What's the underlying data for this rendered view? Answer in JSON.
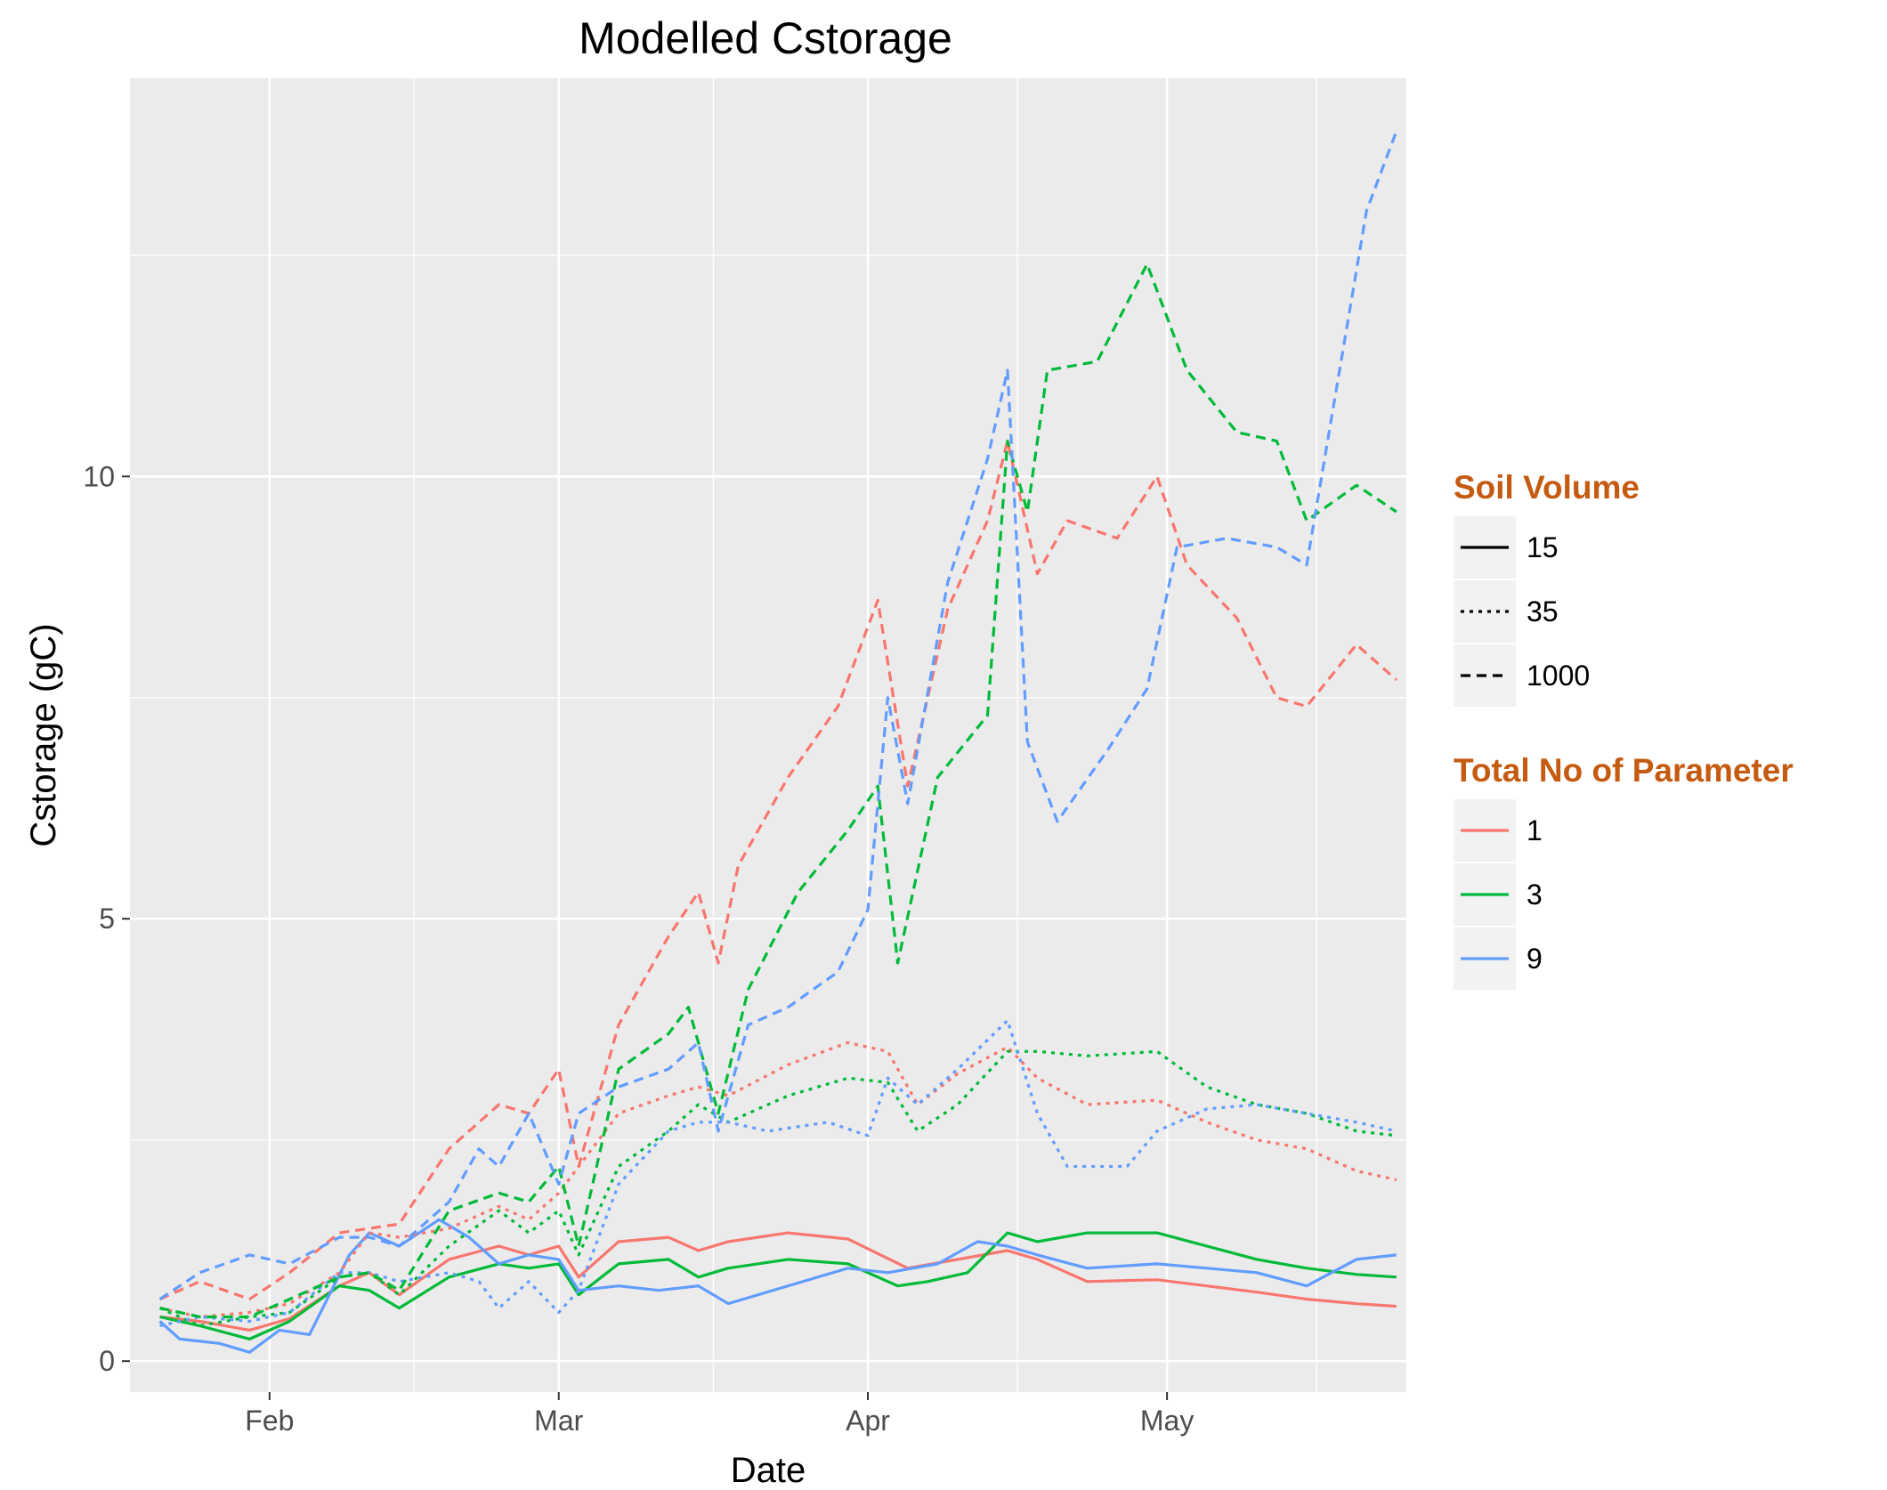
{
  "chart_data": {
    "type": "line",
    "title": "Modelled Cstorage",
    "xlabel": "Date",
    "ylabel": "Cstorage (gC)",
    "x_ticks": [
      {
        "date": "2000-02-01",
        "label": "Feb"
      },
      {
        "date": "2000-03-01",
        "label": "Mar"
      },
      {
        "date": "2000-04-01",
        "label": "Apr"
      },
      {
        "date": "2000-05-01",
        "label": "May"
      }
    ],
    "y_ticks": [
      0,
      5,
      10
    ],
    "xlim": [
      "2000-01-18",
      "2000-05-25"
    ],
    "ylim": [
      -0.35,
      14.5
    ],
    "grid": true,
    "legend_position": "right",
    "legends": [
      {
        "title": "Soil Volume",
        "kind": "linetype",
        "items": [
          {
            "label": "15",
            "linetype": "solid"
          },
          {
            "label": "35",
            "linetype": "dotted"
          },
          {
            "label": "1000",
            "linetype": "dashed"
          }
        ]
      },
      {
        "title": "Total No of Parameter",
        "kind": "color",
        "items": [
          {
            "label": "1",
            "color": "#F8766D"
          },
          {
            "label": "3",
            "color": "#00BA38"
          },
          {
            "label": "9",
            "color": "#619CFF"
          }
        ]
      }
    ],
    "series": [
      {
        "parameter": "1",
        "soil_volume": "15",
        "x": [
          "2000-01-21",
          "2000-01-25",
          "2000-01-30",
          "2000-02-03",
          "2000-02-08",
          "2000-02-11",
          "2000-02-14",
          "2000-02-19",
          "2000-02-24",
          "2000-02-27",
          "2000-03-01",
          "2000-03-03",
          "2000-03-07",
          "2000-03-12",
          "2000-03-15",
          "2000-03-18",
          "2000-03-24",
          "2000-03-30",
          "2000-04-05",
          "2000-04-10",
          "2000-04-15",
          "2000-04-18",
          "2000-04-23",
          "2000-04-30",
          "2000-05-05",
          "2000-05-10",
          "2000-05-15",
          "2000-05-20",
          "2000-05-24"
        ],
        "y": [
          0.5,
          0.45,
          0.35,
          0.48,
          0.85,
          1.0,
          0.75,
          1.15,
          1.3,
          1.2,
          1.3,
          0.95,
          1.35,
          1.4,
          1.25,
          1.35,
          1.45,
          1.38,
          1.05,
          1.15,
          1.25,
          1.15,
          0.9,
          0.92,
          0.85,
          0.78,
          0.7,
          0.65,
          0.62
        ]
      },
      {
        "parameter": "3",
        "soil_volume": "15",
        "x": [
          "2000-01-21",
          "2000-01-25",
          "2000-01-30",
          "2000-02-03",
          "2000-02-08",
          "2000-02-11",
          "2000-02-14",
          "2000-02-19",
          "2000-02-24",
          "2000-02-27",
          "2000-03-01",
          "2000-03-03",
          "2000-03-07",
          "2000-03-12",
          "2000-03-15",
          "2000-03-18",
          "2000-03-24",
          "2000-03-30",
          "2000-04-04",
          "2000-04-07",
          "2000-04-11",
          "2000-04-15",
          "2000-04-18",
          "2000-04-23",
          "2000-04-30",
          "2000-05-05",
          "2000-05-10",
          "2000-05-15",
          "2000-05-20",
          "2000-05-24"
        ],
        "y": [
          0.5,
          0.4,
          0.25,
          0.45,
          0.85,
          0.8,
          0.6,
          0.95,
          1.1,
          1.05,
          1.1,
          0.75,
          1.1,
          1.15,
          0.95,
          1.05,
          1.15,
          1.1,
          0.85,
          0.9,
          1.0,
          1.45,
          1.35,
          1.45,
          1.45,
          1.3,
          1.15,
          1.05,
          0.98,
          0.95
        ]
      },
      {
        "parameter": "9",
        "soil_volume": "15",
        "x": [
          "2000-01-21",
          "2000-01-23",
          "2000-01-27",
          "2000-01-30",
          "2000-02-02",
          "2000-02-05",
          "2000-02-09",
          "2000-02-11",
          "2000-02-14",
          "2000-02-18",
          "2000-02-21",
          "2000-02-24",
          "2000-02-27",
          "2000-03-01",
          "2000-03-03",
          "2000-03-07",
          "2000-03-11",
          "2000-03-15",
          "2000-03-18",
          "2000-03-24",
          "2000-03-30",
          "2000-04-03",
          "2000-04-08",
          "2000-04-12",
          "2000-04-15",
          "2000-04-18",
          "2000-04-23",
          "2000-04-30",
          "2000-05-05",
          "2000-05-10",
          "2000-05-15",
          "2000-05-20",
          "2000-05-24"
        ],
        "y": [
          0.45,
          0.25,
          0.2,
          0.1,
          0.35,
          0.3,
          1.2,
          1.45,
          1.3,
          1.6,
          1.4,
          1.1,
          1.2,
          1.15,
          0.8,
          0.85,
          0.8,
          0.85,
          0.65,
          0.85,
          1.05,
          1.0,
          1.1,
          1.35,
          1.3,
          1.2,
          1.05,
          1.1,
          1.05,
          1.0,
          0.85,
          1.15,
          1.2
        ]
      },
      {
        "parameter": "1",
        "soil_volume": "35",
        "x": [
          "2000-01-21",
          "2000-01-25",
          "2000-01-30",
          "2000-02-03",
          "2000-02-08",
          "2000-02-11",
          "2000-02-14",
          "2000-02-19",
          "2000-02-24",
          "2000-02-27",
          "2000-03-01",
          "2000-03-03",
          "2000-03-07",
          "2000-03-12",
          "2000-03-15",
          "2000-03-18",
          "2000-03-24",
          "2000-03-30",
          "2000-04-03",
          "2000-04-06",
          "2000-04-10",
          "2000-04-15",
          "2000-04-18",
          "2000-04-23",
          "2000-04-30",
          "2000-05-05",
          "2000-05-10",
          "2000-05-15",
          "2000-05-20",
          "2000-05-24"
        ],
        "y": [
          0.6,
          0.5,
          0.55,
          0.65,
          1.0,
          1.45,
          1.4,
          1.5,
          1.75,
          1.6,
          1.9,
          2.2,
          2.8,
          3.0,
          3.1,
          3.0,
          3.35,
          3.6,
          3.5,
          2.9,
          3.25,
          3.55,
          3.2,
          2.9,
          2.95,
          2.7,
          2.5,
          2.4,
          2.15,
          2.05
        ]
      },
      {
        "parameter": "3",
        "soil_volume": "35",
        "x": [
          "2000-01-21",
          "2000-01-25",
          "2000-01-30",
          "2000-02-03",
          "2000-02-08",
          "2000-02-11",
          "2000-02-14",
          "2000-02-19",
          "2000-02-24",
          "2000-02-27",
          "2000-03-01",
          "2000-03-03",
          "2000-03-07",
          "2000-03-12",
          "2000-03-15",
          "2000-03-18",
          "2000-03-24",
          "2000-03-30",
          "2000-04-03",
          "2000-04-06",
          "2000-04-10",
          "2000-04-15",
          "2000-04-18",
          "2000-04-23",
          "2000-04-30",
          "2000-05-05",
          "2000-05-10",
          "2000-05-15",
          "2000-05-20",
          "2000-05-24"
        ],
        "y": [
          0.6,
          0.4,
          0.5,
          0.55,
          0.95,
          1.0,
          0.75,
          1.3,
          1.7,
          1.45,
          1.7,
          1.2,
          2.2,
          2.6,
          2.9,
          2.7,
          3.0,
          3.2,
          3.15,
          2.6,
          2.9,
          3.5,
          3.5,
          3.45,
          3.5,
          3.1,
          2.9,
          2.8,
          2.6,
          2.55
        ]
      },
      {
        "parameter": "9",
        "soil_volume": "35",
        "x": [
          "2000-01-21",
          "2000-01-25",
          "2000-01-30",
          "2000-02-03",
          "2000-02-08",
          "2000-02-11",
          "2000-02-14",
          "2000-02-19",
          "2000-02-22",
          "2000-02-24",
          "2000-02-27",
          "2000-03-01",
          "2000-03-03",
          "2000-03-07",
          "2000-03-12",
          "2000-03-15",
          "2000-03-18",
          "2000-03-22",
          "2000-03-28",
          "2000-04-01",
          "2000-04-03",
          "2000-04-06",
          "2000-04-10",
          "2000-04-15",
          "2000-04-18",
          "2000-04-21",
          "2000-04-27",
          "2000-04-30",
          "2000-05-05",
          "2000-05-10",
          "2000-05-15",
          "2000-05-20",
          "2000-05-24"
        ],
        "y": [
          0.4,
          0.5,
          0.45,
          0.55,
          1.0,
          1.0,
          0.9,
          1.0,
          0.9,
          0.6,
          0.9,
          0.55,
          0.8,
          2.0,
          2.6,
          2.7,
          2.7,
          2.6,
          2.7,
          2.55,
          3.2,
          2.9,
          3.3,
          3.85,
          2.8,
          2.2,
          2.2,
          2.6,
          2.85,
          2.9,
          2.8,
          2.7,
          2.6
        ]
      },
      {
        "parameter": "1",
        "soil_volume": "1000",
        "x": [
          "2000-01-21",
          "2000-01-25",
          "2000-01-30",
          "2000-02-03",
          "2000-02-08",
          "2000-02-11",
          "2000-02-14",
          "2000-02-19",
          "2000-02-24",
          "2000-02-27",
          "2000-03-01",
          "2000-03-03",
          "2000-03-07",
          "2000-03-12",
          "2000-03-15",
          "2000-03-17",
          "2000-03-19",
          "2000-03-24",
          "2000-03-29",
          "2000-04-02",
          "2000-04-05",
          "2000-04-09",
          "2000-04-13",
          "2000-04-15",
          "2000-04-18",
          "2000-04-21",
          "2000-04-26",
          "2000-04-30",
          "2000-05-03",
          "2000-05-08",
          "2000-05-12",
          "2000-05-15",
          "2000-05-20",
          "2000-05-24"
        ],
        "y": [
          0.7,
          0.9,
          0.7,
          1.0,
          1.45,
          1.5,
          1.55,
          2.4,
          2.9,
          2.8,
          3.3,
          2.2,
          3.8,
          4.8,
          5.3,
          4.5,
          5.6,
          6.6,
          7.4,
          8.6,
          6.5,
          8.5,
          9.5,
          10.4,
          8.9,
          9.5,
          9.3,
          10.0,
          9.0,
          8.4,
          7.5,
          7.4,
          8.1,
          7.7
        ]
      },
      {
        "parameter": "3",
        "soil_volume": "1000",
        "x": [
          "2000-01-21",
          "2000-01-25",
          "2000-01-30",
          "2000-02-03",
          "2000-02-08",
          "2000-02-11",
          "2000-02-14",
          "2000-02-19",
          "2000-02-24",
          "2000-02-27",
          "2000-03-01",
          "2000-03-03",
          "2000-03-07",
          "2000-03-12",
          "2000-03-14",
          "2000-03-17",
          "2000-03-20",
          "2000-03-25",
          "2000-03-30",
          "2000-04-02",
          "2000-04-04",
          "2000-04-08",
          "2000-04-13",
          "2000-04-15",
          "2000-04-17",
          "2000-04-19",
          "2000-04-24",
          "2000-04-29",
          "2000-05-03",
          "2000-05-08",
          "2000-05-12",
          "2000-05-15",
          "2000-05-20",
          "2000-05-24"
        ],
        "y": [
          0.6,
          0.5,
          0.5,
          0.7,
          0.95,
          1.0,
          0.8,
          1.7,
          1.9,
          1.8,
          2.2,
          1.3,
          3.3,
          3.7,
          4.0,
          2.8,
          4.2,
          5.3,
          6.0,
          6.5,
          4.5,
          6.6,
          7.3,
          10.4,
          9.6,
          11.2,
          11.3,
          12.4,
          11.2,
          10.5,
          10.4,
          9.5,
          9.9,
          9.6
        ]
      },
      {
        "parameter": "9",
        "soil_volume": "1000",
        "x": [
          "2000-01-21",
          "2000-01-25",
          "2000-01-30",
          "2000-02-03",
          "2000-02-08",
          "2000-02-11",
          "2000-02-14",
          "2000-02-19",
          "2000-02-22",
          "2000-02-24",
          "2000-02-27",
          "2000-03-01",
          "2000-03-03",
          "2000-03-07",
          "2000-03-12",
          "2000-03-15",
          "2000-03-17",
          "2000-03-20",
          "2000-03-24",
          "2000-03-29",
          "2000-04-01",
          "2000-04-03",
          "2000-04-05",
          "2000-04-09",
          "2000-04-13",
          "2000-04-15",
          "2000-04-17",
          "2000-04-20",
          "2000-04-25",
          "2000-04-29",
          "2000-05-02",
          "2000-05-07",
          "2000-05-12",
          "2000-05-15",
          "2000-05-18",
          "2000-05-21",
          "2000-05-24"
        ],
        "y": [
          0.7,
          1.0,
          1.2,
          1.1,
          1.4,
          1.4,
          1.3,
          1.8,
          2.4,
          2.2,
          2.8,
          2.0,
          2.8,
          3.1,
          3.3,
          3.6,
          2.6,
          3.8,
          4.0,
          4.4,
          5.1,
          7.5,
          6.3,
          8.8,
          10.2,
          11.2,
          7.0,
          6.1,
          6.9,
          7.6,
          9.2,
          9.3,
          9.2,
          9.0,
          11.0,
          13.0,
          13.9
        ]
      }
    ]
  }
}
